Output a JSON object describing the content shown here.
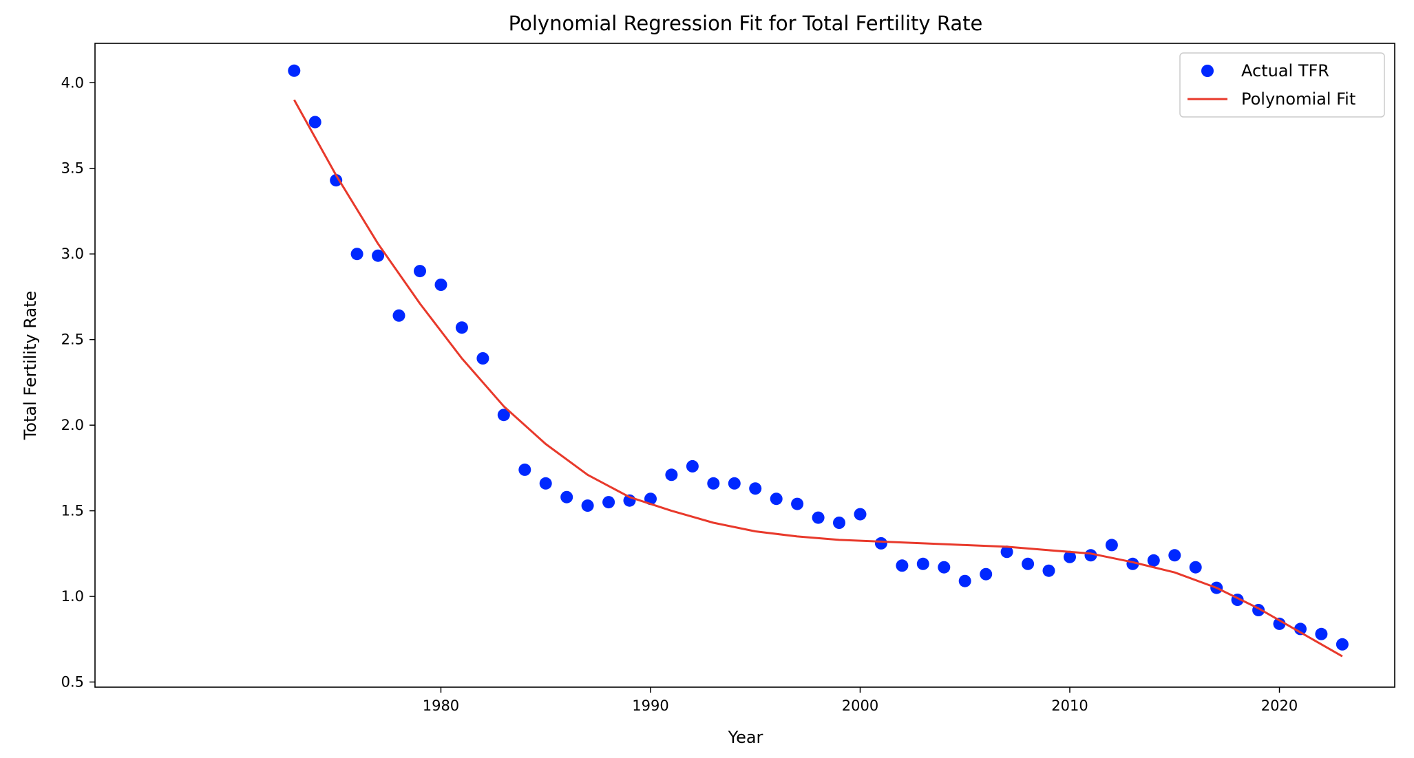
{
  "chart_data": {
    "type": "scatter",
    "title": "Polynomial Regression Fit for Total Fertility Rate",
    "xlabel": "Year",
    "ylabel": "Total Fertility Rate",
    "xlim": [
      1963.5,
      2025.5
    ],
    "ylim": [
      0.47,
      4.23
    ],
    "xticks": [
      1980,
      1990,
      2000,
      2010,
      2020
    ],
    "yticks": [
      0.5,
      1.0,
      1.5,
      2.0,
      2.5,
      3.0,
      3.5,
      4.0
    ],
    "xtick_labels": [
      "1980",
      "1990",
      "2000",
      "2010",
      "2020"
    ],
    "ytick_labels": [
      "0.5",
      "1.0",
      "1.5",
      "2.0",
      "2.5",
      "3.0",
      "3.5",
      "4.0"
    ],
    "grid": false,
    "legend_position": "top-right",
    "series": [
      {
        "name": "Actual TFR",
        "kind": "scatter",
        "color": "#0028ff",
        "x": [
          1973,
          1974,
          1975,
          1976,
          1977,
          1978,
          1979,
          1980,
          1981,
          1982,
          1983,
          1984,
          1985,
          1986,
          1987,
          1988,
          1989,
          1990,
          1991,
          1992,
          1993,
          1994,
          1995,
          1996,
          1997,
          1998,
          1999,
          2000,
          2001,
          2002,
          2003,
          2004,
          2005,
          2006,
          2007,
          2008,
          2009,
          2010,
          2011,
          2012,
          2013,
          2014,
          2015,
          2016,
          2017,
          2018,
          2019,
          2020,
          2021,
          2022,
          2023
        ],
        "y": [
          4.07,
          3.77,
          3.43,
          3.0,
          2.99,
          2.64,
          2.9,
          2.82,
          2.57,
          2.39,
          2.06,
          1.74,
          1.66,
          1.58,
          1.53,
          1.55,
          1.56,
          1.57,
          1.71,
          1.76,
          1.66,
          1.66,
          1.63,
          1.57,
          1.54,
          1.46,
          1.43,
          1.48,
          1.31,
          1.18,
          1.19,
          1.17,
          1.09,
          1.13,
          1.26,
          1.19,
          1.15,
          1.23,
          1.24,
          1.3,
          1.19,
          1.21,
          1.24,
          1.17,
          1.05,
          0.98,
          0.92,
          0.84,
          0.81,
          0.78,
          0.72
        ]
      },
      {
        "name": "Polynomial Fit",
        "kind": "line",
        "color": "#e8392b",
        "x": [
          1973,
          1975,
          1977,
          1979,
          1981,
          1983,
          1985,
          1987,
          1989,
          1991,
          1993,
          1995,
          1997,
          1999,
          2001,
          2003,
          2005,
          2007,
          2009,
          2011,
          2013,
          2015,
          2017,
          2019,
          2021,
          2023
        ],
        "y": [
          3.9,
          3.46,
          3.06,
          2.71,
          2.39,
          2.11,
          1.89,
          1.71,
          1.58,
          1.5,
          1.43,
          1.38,
          1.35,
          1.33,
          1.32,
          1.31,
          1.3,
          1.29,
          1.27,
          1.25,
          1.2,
          1.14,
          1.05,
          0.93,
          0.79,
          0.65
        ]
      }
    ]
  }
}
